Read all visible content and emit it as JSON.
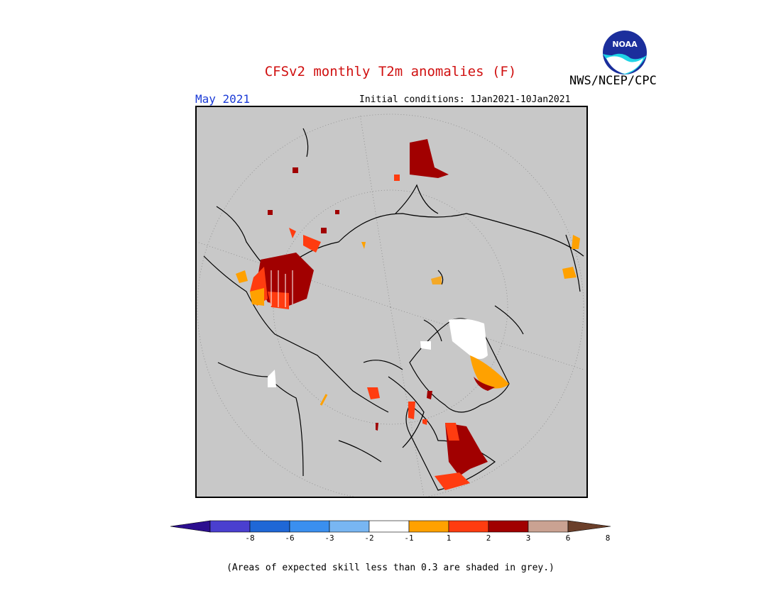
{
  "header": {
    "title": "CFSv2 monthly T2m anomalies (F)",
    "month": "May 2021",
    "initial_conditions": "Initial conditions: 1Jan2021-10Jan2021",
    "org": "NWS/NCEP/CPC",
    "logo_text": "NOAA"
  },
  "colorbar": {
    "bins": [
      {
        "color": "#2c0e8f"
      },
      {
        "color": "#4a3fcf"
      },
      {
        "color": "#1f67d6"
      },
      {
        "color": "#3a8fef"
      },
      {
        "color": "#78b6f2"
      },
      {
        "color": "#ffffff"
      },
      {
        "color": "#ffa100"
      },
      {
        "color": "#ff3c10"
      },
      {
        "color": "#a10000"
      },
      {
        "color": "#caa292"
      },
      {
        "color": "#6b3f2a"
      }
    ],
    "ticks": [
      "-8",
      "-6",
      "-3",
      "-2",
      "-1",
      "1",
      "2",
      "3",
      "6",
      "8"
    ]
  },
  "map": {
    "background": "#c8c8c8",
    "projection": "polar stereographic",
    "regions": [
      {
        "name": "west-russia-siberia-warm",
        "color": "#a10000"
      },
      {
        "name": "central-asia-warm",
        "color": "#ff3c10"
      },
      {
        "name": "scandinavia-warm",
        "color": "#a10000"
      },
      {
        "name": "alaska-warm",
        "color": "#ffa100"
      },
      {
        "name": "greenland-neutral",
        "color": "#ffffff"
      },
      {
        "name": "canada-ne-warm",
        "color": "#ffa100"
      }
    ]
  },
  "footnote": "(Areas of expected skill less than 0.3 are shaded in grey.)"
}
